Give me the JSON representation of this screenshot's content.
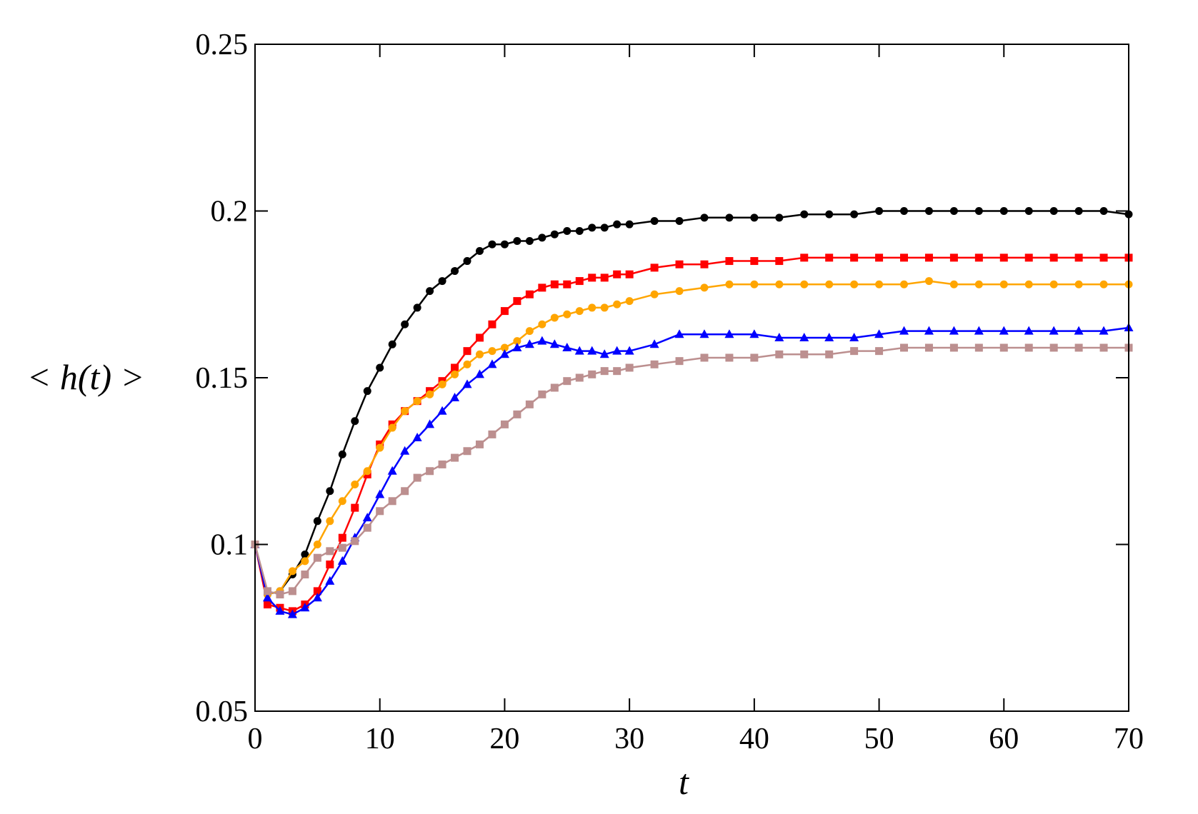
{
  "chart_data": {
    "type": "line",
    "title": "",
    "xlabel": "t",
    "ylabel": "< h(t) >",
    "xlim": [
      0,
      70
    ],
    "ylim": [
      0.05,
      0.25
    ],
    "xticks": [
      "0",
      "10",
      "20",
      "30",
      "40",
      "50",
      "60",
      "70"
    ],
    "yticks": [
      "0.05",
      "0.1",
      "0.15",
      "0.2",
      "0.25"
    ],
    "grid": false,
    "legend": "none",
    "series": [
      {
        "color": "#000000",
        "marker": "circle",
        "points": [
          [
            0,
            0.1
          ],
          [
            1,
            0.085
          ],
          [
            2,
            0.086
          ],
          [
            3,
            0.091
          ],
          [
            4,
            0.097
          ],
          [
            5,
            0.107
          ],
          [
            6,
            0.116
          ],
          [
            7,
            0.127
          ],
          [
            8,
            0.137
          ],
          [
            9,
            0.146
          ],
          [
            10,
            0.153
          ],
          [
            11,
            0.16
          ],
          [
            12,
            0.166
          ],
          [
            13,
            0.171
          ],
          [
            14,
            0.176
          ],
          [
            15,
            0.179
          ],
          [
            16,
            0.182
          ],
          [
            17,
            0.185
          ],
          [
            18,
            0.188
          ],
          [
            19,
            0.19
          ],
          [
            20,
            0.19
          ],
          [
            21,
            0.191
          ],
          [
            22,
            0.191
          ],
          [
            23,
            0.192
          ],
          [
            24,
            0.193
          ],
          [
            25,
            0.194
          ],
          [
            26,
            0.194
          ],
          [
            27,
            0.195
          ],
          [
            28,
            0.195
          ],
          [
            29,
            0.196
          ],
          [
            30,
            0.196
          ],
          [
            32,
            0.197
          ],
          [
            34,
            0.197
          ],
          [
            36,
            0.198
          ],
          [
            38,
            0.198
          ],
          [
            40,
            0.198
          ],
          [
            42,
            0.198
          ],
          [
            44,
            0.199
          ],
          [
            46,
            0.199
          ],
          [
            48,
            0.199
          ],
          [
            50,
            0.2
          ],
          [
            52,
            0.2
          ],
          [
            54,
            0.2
          ],
          [
            56,
            0.2
          ],
          [
            58,
            0.2
          ],
          [
            60,
            0.2
          ],
          [
            62,
            0.2
          ],
          [
            64,
            0.2
          ],
          [
            66,
            0.2
          ],
          [
            68,
            0.2
          ],
          [
            70,
            0.199
          ]
        ]
      },
      {
        "color": "#ff0000",
        "marker": "square",
        "points": [
          [
            0,
            0.1
          ],
          [
            1,
            0.082
          ],
          [
            2,
            0.081
          ],
          [
            3,
            0.08
          ],
          [
            4,
            0.082
          ],
          [
            5,
            0.086
          ],
          [
            6,
            0.094
          ],
          [
            7,
            0.102
          ],
          [
            8,
            0.111
          ],
          [
            9,
            0.121
          ],
          [
            10,
            0.13
          ],
          [
            11,
            0.136
          ],
          [
            12,
            0.14
          ],
          [
            13,
            0.143
          ],
          [
            14,
            0.146
          ],
          [
            15,
            0.149
          ],
          [
            16,
            0.153
          ],
          [
            17,
            0.158
          ],
          [
            18,
            0.162
          ],
          [
            19,
            0.166
          ],
          [
            20,
            0.17
          ],
          [
            21,
            0.173
          ],
          [
            22,
            0.175
          ],
          [
            23,
            0.177
          ],
          [
            24,
            0.178
          ],
          [
            25,
            0.178
          ],
          [
            26,
            0.179
          ],
          [
            27,
            0.18
          ],
          [
            28,
            0.18
          ],
          [
            29,
            0.181
          ],
          [
            30,
            0.181
          ],
          [
            32,
            0.183
          ],
          [
            34,
            0.184
          ],
          [
            36,
            0.184
          ],
          [
            38,
            0.185
          ],
          [
            40,
            0.185
          ],
          [
            42,
            0.185
          ],
          [
            44,
            0.186
          ],
          [
            46,
            0.186
          ],
          [
            48,
            0.186
          ],
          [
            50,
            0.186
          ],
          [
            52,
            0.186
          ],
          [
            54,
            0.186
          ],
          [
            56,
            0.186
          ],
          [
            58,
            0.186
          ],
          [
            60,
            0.186
          ],
          [
            62,
            0.186
          ],
          [
            64,
            0.186
          ],
          [
            66,
            0.186
          ],
          [
            68,
            0.186
          ],
          [
            70,
            0.186
          ]
        ]
      },
      {
        "color": "#ffa500",
        "marker": "circle",
        "points": [
          [
            0,
            0.1
          ],
          [
            1,
            0.085
          ],
          [
            2,
            0.086
          ],
          [
            3,
            0.092
          ],
          [
            4,
            0.095
          ],
          [
            5,
            0.1
          ],
          [
            6,
            0.107
          ],
          [
            7,
            0.113
          ],
          [
            8,
            0.118
          ],
          [
            9,
            0.122
          ],
          [
            10,
            0.129
          ],
          [
            11,
            0.135
          ],
          [
            12,
            0.14
          ],
          [
            13,
            0.143
          ],
          [
            14,
            0.145
          ],
          [
            15,
            0.148
          ],
          [
            16,
            0.151
          ],
          [
            17,
            0.154
          ],
          [
            18,
            0.157
          ],
          [
            19,
            0.158
          ],
          [
            20,
            0.159
          ],
          [
            21,
            0.161
          ],
          [
            22,
            0.164
          ],
          [
            23,
            0.166
          ],
          [
            24,
            0.168
          ],
          [
            25,
            0.169
          ],
          [
            26,
            0.17
          ],
          [
            27,
            0.171
          ],
          [
            28,
            0.171
          ],
          [
            29,
            0.172
          ],
          [
            30,
            0.173
          ],
          [
            32,
            0.175
          ],
          [
            34,
            0.176
          ],
          [
            36,
            0.177
          ],
          [
            38,
            0.178
          ],
          [
            40,
            0.178
          ],
          [
            42,
            0.178
          ],
          [
            44,
            0.178
          ],
          [
            46,
            0.178
          ],
          [
            48,
            0.178
          ],
          [
            50,
            0.178
          ],
          [
            52,
            0.178
          ],
          [
            54,
            0.179
          ],
          [
            56,
            0.178
          ],
          [
            58,
            0.178
          ],
          [
            60,
            0.178
          ],
          [
            62,
            0.178
          ],
          [
            64,
            0.178
          ],
          [
            66,
            0.178
          ],
          [
            68,
            0.178
          ],
          [
            70,
            0.178
          ]
        ]
      },
      {
        "color": "#0000ff",
        "marker": "triangle",
        "points": [
          [
            0,
            0.1
          ],
          [
            1,
            0.084
          ],
          [
            2,
            0.08
          ],
          [
            3,
            0.079
          ],
          [
            4,
            0.081
          ],
          [
            5,
            0.084
          ],
          [
            6,
            0.089
          ],
          [
            7,
            0.095
          ],
          [
            8,
            0.102
          ],
          [
            9,
            0.108
          ],
          [
            10,
            0.115
          ],
          [
            11,
            0.122
          ],
          [
            12,
            0.128
          ],
          [
            13,
            0.132
          ],
          [
            14,
            0.136
          ],
          [
            15,
            0.14
          ],
          [
            16,
            0.144
          ],
          [
            17,
            0.148
          ],
          [
            18,
            0.151
          ],
          [
            19,
            0.154
          ],
          [
            20,
            0.157
          ],
          [
            21,
            0.159
          ],
          [
            22,
            0.16
          ],
          [
            23,
            0.161
          ],
          [
            24,
            0.16
          ],
          [
            25,
            0.159
          ],
          [
            26,
            0.158
          ],
          [
            27,
            0.158
          ],
          [
            28,
            0.157
          ],
          [
            29,
            0.158
          ],
          [
            30,
            0.158
          ],
          [
            32,
            0.16
          ],
          [
            34,
            0.163
          ],
          [
            36,
            0.163
          ],
          [
            38,
            0.163
          ],
          [
            40,
            0.163
          ],
          [
            42,
            0.162
          ],
          [
            44,
            0.162
          ],
          [
            46,
            0.162
          ],
          [
            48,
            0.162
          ],
          [
            50,
            0.163
          ],
          [
            52,
            0.164
          ],
          [
            54,
            0.164
          ],
          [
            56,
            0.164
          ],
          [
            58,
            0.164
          ],
          [
            60,
            0.164
          ],
          [
            62,
            0.164
          ],
          [
            64,
            0.164
          ],
          [
            66,
            0.164
          ],
          [
            68,
            0.164
          ],
          [
            70,
            0.165
          ]
        ]
      },
      {
        "color": "#bc8f8f",
        "marker": "square",
        "points": [
          [
            0,
            0.1
          ],
          [
            1,
            0.086
          ],
          [
            2,
            0.085
          ],
          [
            3,
            0.086
          ],
          [
            4,
            0.091
          ],
          [
            5,
            0.096
          ],
          [
            6,
            0.098
          ],
          [
            7,
            0.099
          ],
          [
            8,
            0.101
          ],
          [
            9,
            0.105
          ],
          [
            10,
            0.11
          ],
          [
            11,
            0.113
          ],
          [
            12,
            0.116
          ],
          [
            13,
            0.12
          ],
          [
            14,
            0.122
          ],
          [
            15,
            0.124
          ],
          [
            16,
            0.126
          ],
          [
            17,
            0.128
          ],
          [
            18,
            0.13
          ],
          [
            19,
            0.133
          ],
          [
            20,
            0.136
          ],
          [
            21,
            0.139
          ],
          [
            22,
            0.142
          ],
          [
            23,
            0.145
          ],
          [
            24,
            0.147
          ],
          [
            25,
            0.149
          ],
          [
            26,
            0.15
          ],
          [
            27,
            0.151
          ],
          [
            28,
            0.152
          ],
          [
            29,
            0.152
          ],
          [
            30,
            0.153
          ],
          [
            32,
            0.154
          ],
          [
            34,
            0.155
          ],
          [
            36,
            0.156
          ],
          [
            38,
            0.156
          ],
          [
            40,
            0.156
          ],
          [
            42,
            0.157
          ],
          [
            44,
            0.157
          ],
          [
            46,
            0.157
          ],
          [
            48,
            0.158
          ],
          [
            50,
            0.158
          ],
          [
            52,
            0.159
          ],
          [
            54,
            0.159
          ],
          [
            56,
            0.159
          ],
          [
            58,
            0.159
          ],
          [
            60,
            0.159
          ],
          [
            62,
            0.159
          ],
          [
            64,
            0.159
          ],
          [
            66,
            0.159
          ],
          [
            68,
            0.159
          ],
          [
            70,
            0.159
          ]
        ]
      }
    ]
  }
}
